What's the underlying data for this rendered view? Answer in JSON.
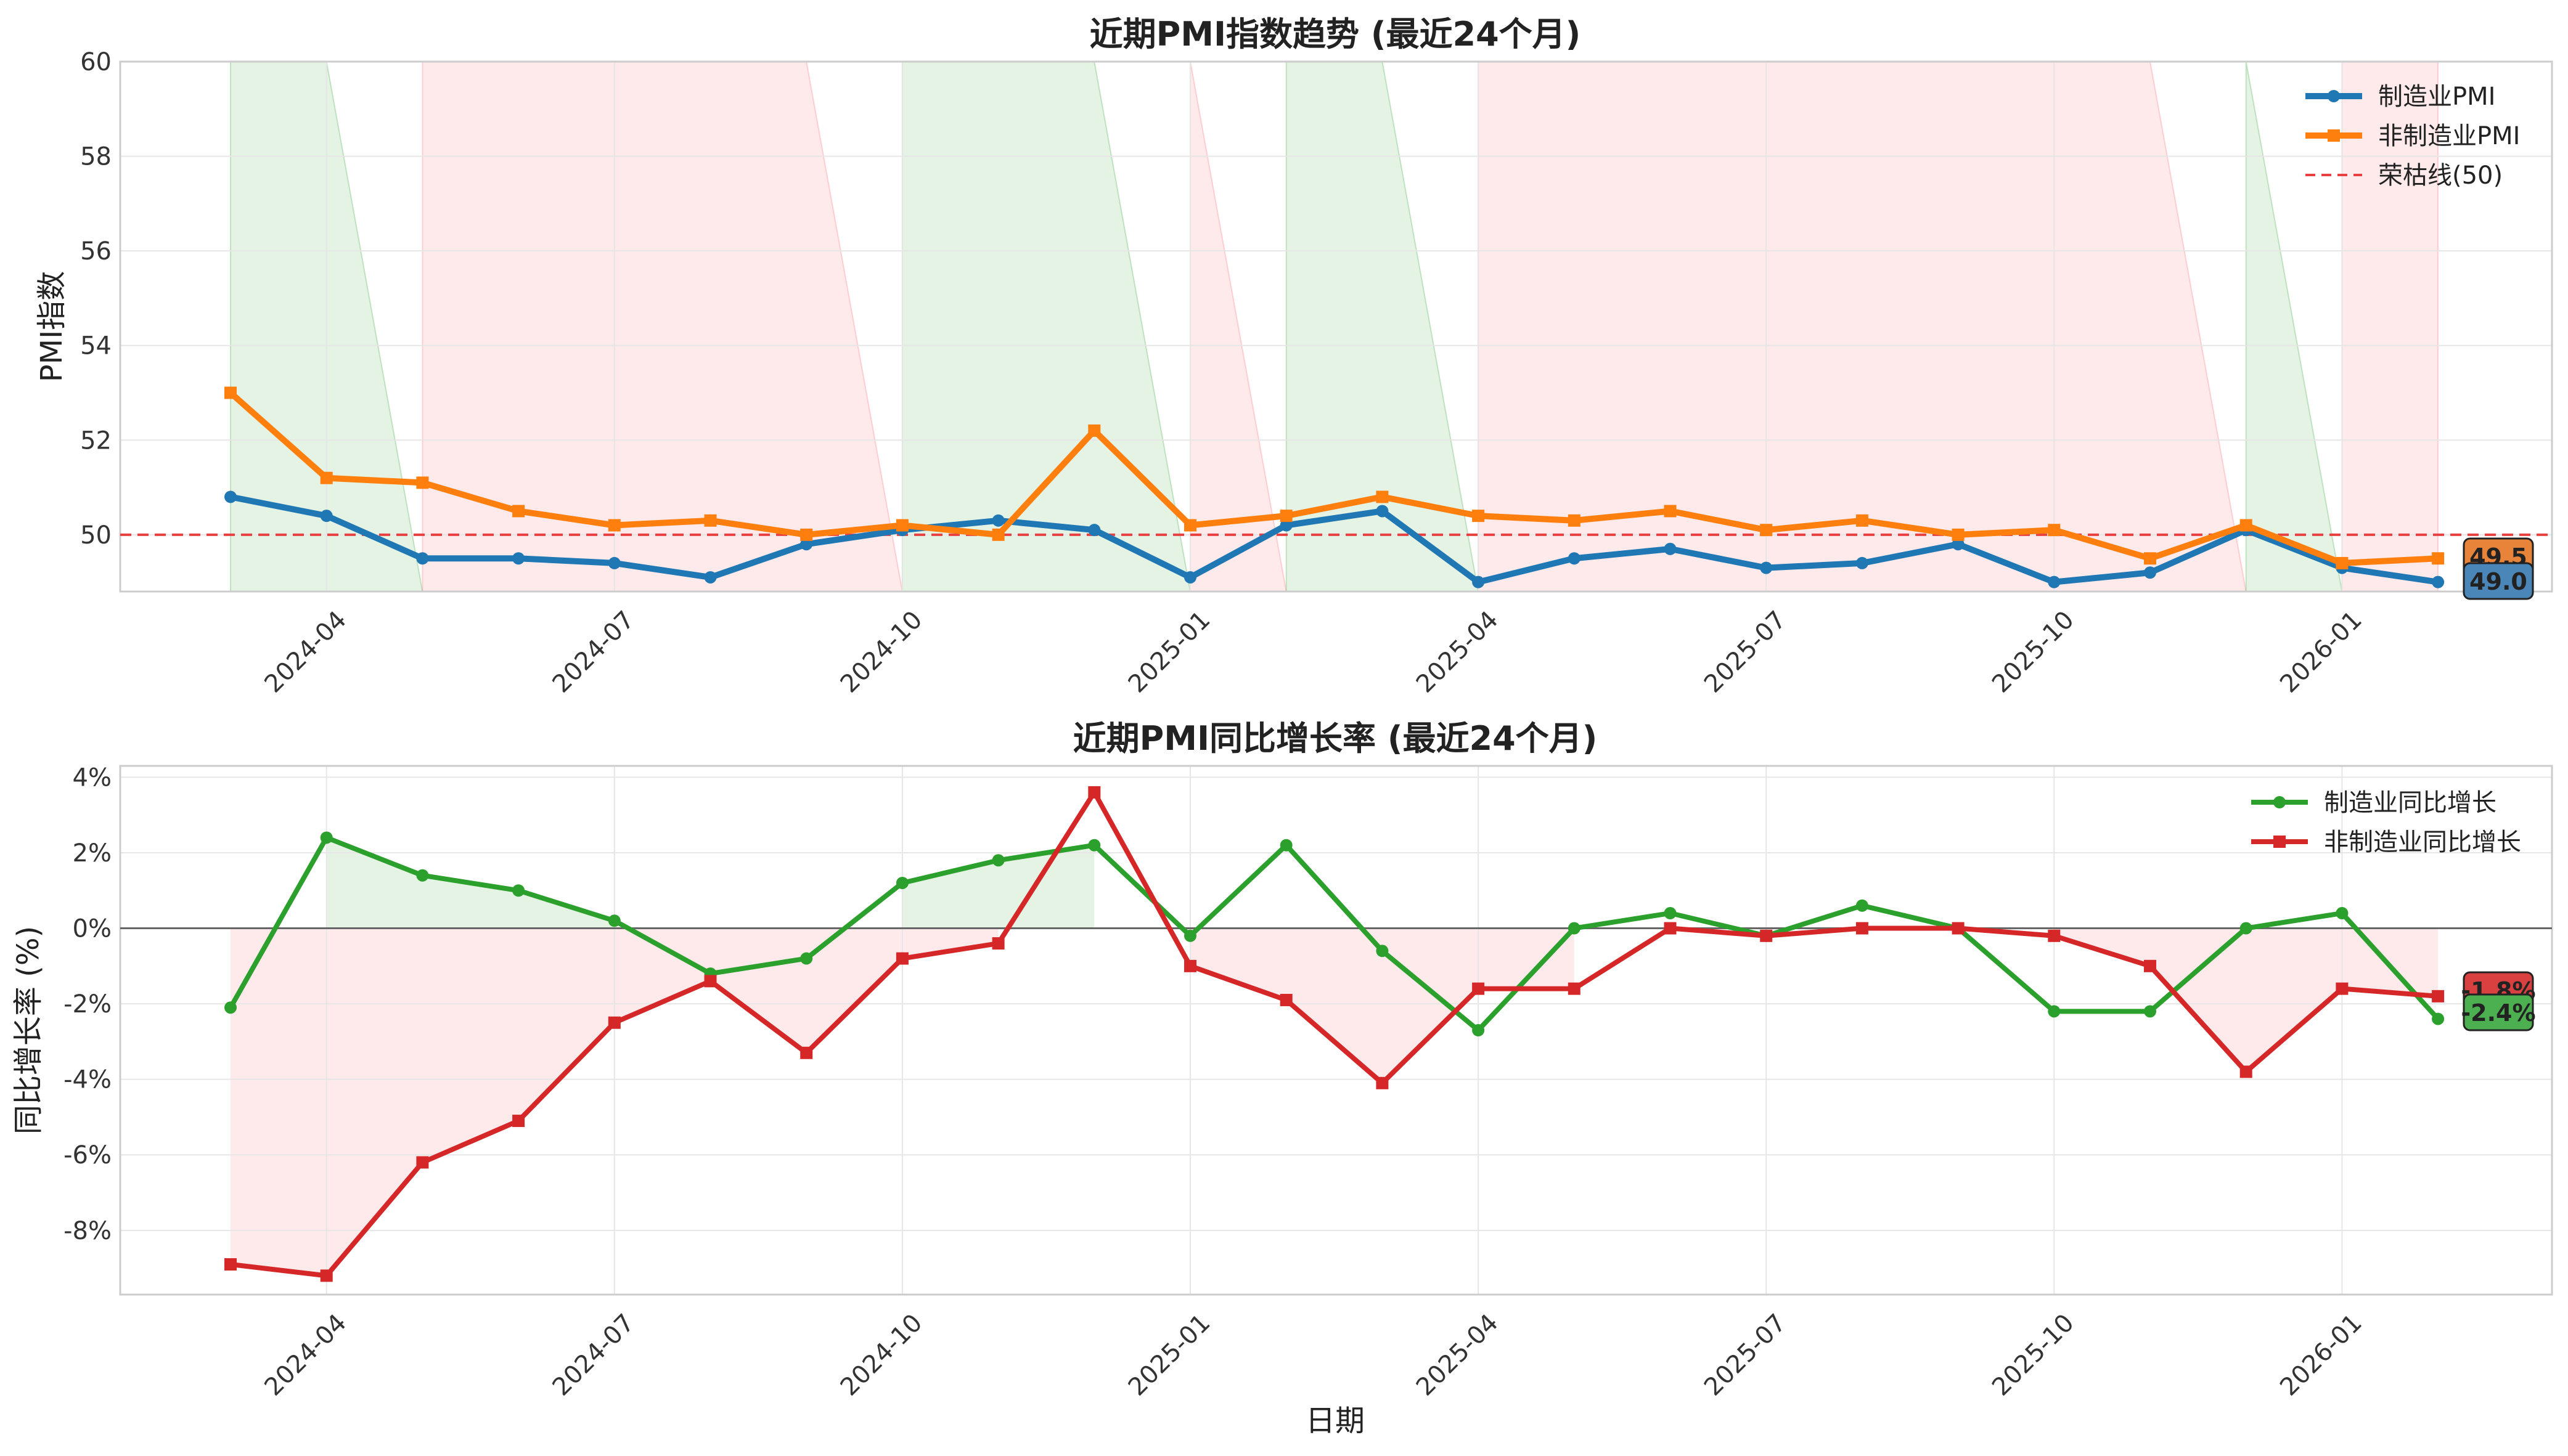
{
  "chart_data": [
    {
      "type": "line",
      "title": "近期PMI指数趋势 (最近24个月)",
      "xlabel": "",
      "ylabel": "PMI指数",
      "ylim": [
        48.8,
        60
      ],
      "yticks": [
        "50",
        "52",
        "54",
        "56",
        "58",
        "60"
      ],
      "xticks": [
        "2024-04",
        "2024-07",
        "2024-10",
        "2025-01",
        "2025-04",
        "2025-07",
        "2025-10",
        "2026-01"
      ],
      "x": [
        "2024-03",
        "2024-04",
        "2024-05",
        "2024-06",
        "2024-07",
        "2024-08",
        "2024-09",
        "2024-10",
        "2024-11",
        "2024-12",
        "2025-01",
        "2025-02",
        "2025-03",
        "2025-04",
        "2025-05",
        "2025-06",
        "2025-07",
        "2025-08",
        "2025-09",
        "2025-10",
        "2025-11",
        "2025-12",
        "2026-01",
        "2026-02"
      ],
      "series": [
        {
          "name": "制造业PMI",
          "color": "#1f77b4",
          "marker": "circle",
          "values": [
            50.8,
            50.4,
            49.5,
            49.5,
            49.4,
            49.1,
            49.8,
            50.1,
            50.3,
            50.1,
            49.1,
            50.2,
            50.5,
            49.0,
            49.5,
            49.7,
            49.3,
            49.4,
            49.8,
            49.0,
            49.2,
            50.1,
            49.3,
            49.0
          ]
        },
        {
          "name": "非制造业PMI",
          "color": "#ff7f0e",
          "marker": "square",
          "values": [
            53.0,
            51.2,
            51.1,
            50.5,
            50.2,
            50.3,
            50.0,
            50.2,
            50.0,
            52.2,
            50.2,
            50.4,
            50.8,
            50.4,
            50.3,
            50.5,
            50.1,
            50.3,
            50.0,
            50.1,
            49.5,
            50.2,
            49.4,
            49.5
          ]
        }
      ],
      "reference_line": {
        "name": "荣枯线(50)",
        "value": 50,
        "color": "#e84040"
      },
      "last_value_labels": [
        {
          "text": "49.5",
          "color": "#e8833a"
        },
        {
          "text": "49.0",
          "color": "#4a86b8"
        }
      ],
      "shaded_spans": [
        {
          "from": 0,
          "to": 1,
          "color": "green"
        },
        {
          "from": 2,
          "to": 6,
          "color": "red"
        },
        {
          "from": 7,
          "to": 9,
          "color": "green"
        },
        {
          "from": 10,
          "to": 10,
          "color": "red"
        },
        {
          "from": 11,
          "to": 12,
          "color": "green"
        },
        {
          "from": 13,
          "to": 20,
          "color": "red"
        },
        {
          "from": 21,
          "to": 21,
          "color": "green"
        },
        {
          "from": 22,
          "to": 23,
          "color": "red"
        }
      ],
      "grid": true,
      "legend": "top-right"
    },
    {
      "type": "line",
      "title": "近期PMI同比增长率 (最近24个月)",
      "xlabel": "日期",
      "ylabel": "同比增长率 (%)",
      "ylim": [
        -9.7,
        4.3
      ],
      "yticks": [
        "4%",
        "2%",
        "0%",
        "-2%",
        "-4%",
        "-6%",
        "-8%"
      ],
      "xticks": [
        "2024-04",
        "2024-07",
        "2024-10",
        "2025-01",
        "2025-04",
        "2025-07",
        "2025-10",
        "2026-01"
      ],
      "x": [
        "2024-03",
        "2024-04",
        "2024-05",
        "2024-06",
        "2024-07",
        "2024-08",
        "2024-09",
        "2024-10",
        "2024-11",
        "2024-12",
        "2025-01",
        "2025-02",
        "2025-03",
        "2025-04",
        "2025-05",
        "2025-06",
        "2025-07",
        "2025-08",
        "2025-09",
        "2025-10",
        "2025-11",
        "2025-12",
        "2026-01",
        "2026-02"
      ],
      "series": [
        {
          "name": "制造业同比增长",
          "color": "#2ca02c",
          "marker": "circle",
          "values": [
            -2.1,
            2.4,
            1.4,
            1.0,
            0.2,
            -1.2,
            -0.8,
            1.2,
            1.8,
            2.2,
            -0.2,
            2.2,
            -0.6,
            -2.7,
            0.0,
            0.4,
            -0.2,
            0.6,
            0.0,
            -2.2,
            -2.2,
            0.0,
            0.4,
            -2.4
          ]
        },
        {
          "name": "非制造业同比增长",
          "color": "#d62728",
          "marker": "square",
          "values": [
            -8.9,
            -9.2,
            -6.2,
            -5.1,
            -2.5,
            -1.4,
            -3.3,
            -0.8,
            -0.4,
            3.6,
            -1.0,
            -1.9,
            -4.1,
            -1.6,
            -1.6,
            0.0,
            -0.2,
            0.0,
            0.0,
            -0.2,
            -1.0,
            -3.8,
            -1.6,
            -1.8
          ]
        }
      ],
      "last_value_labels": [
        {
          "text": "-1.8%",
          "color": "#d94040"
        },
        {
          "text": "-2.4%",
          "color": "#4caf50"
        }
      ],
      "grid": true,
      "legend": "top-right"
    }
  ]
}
